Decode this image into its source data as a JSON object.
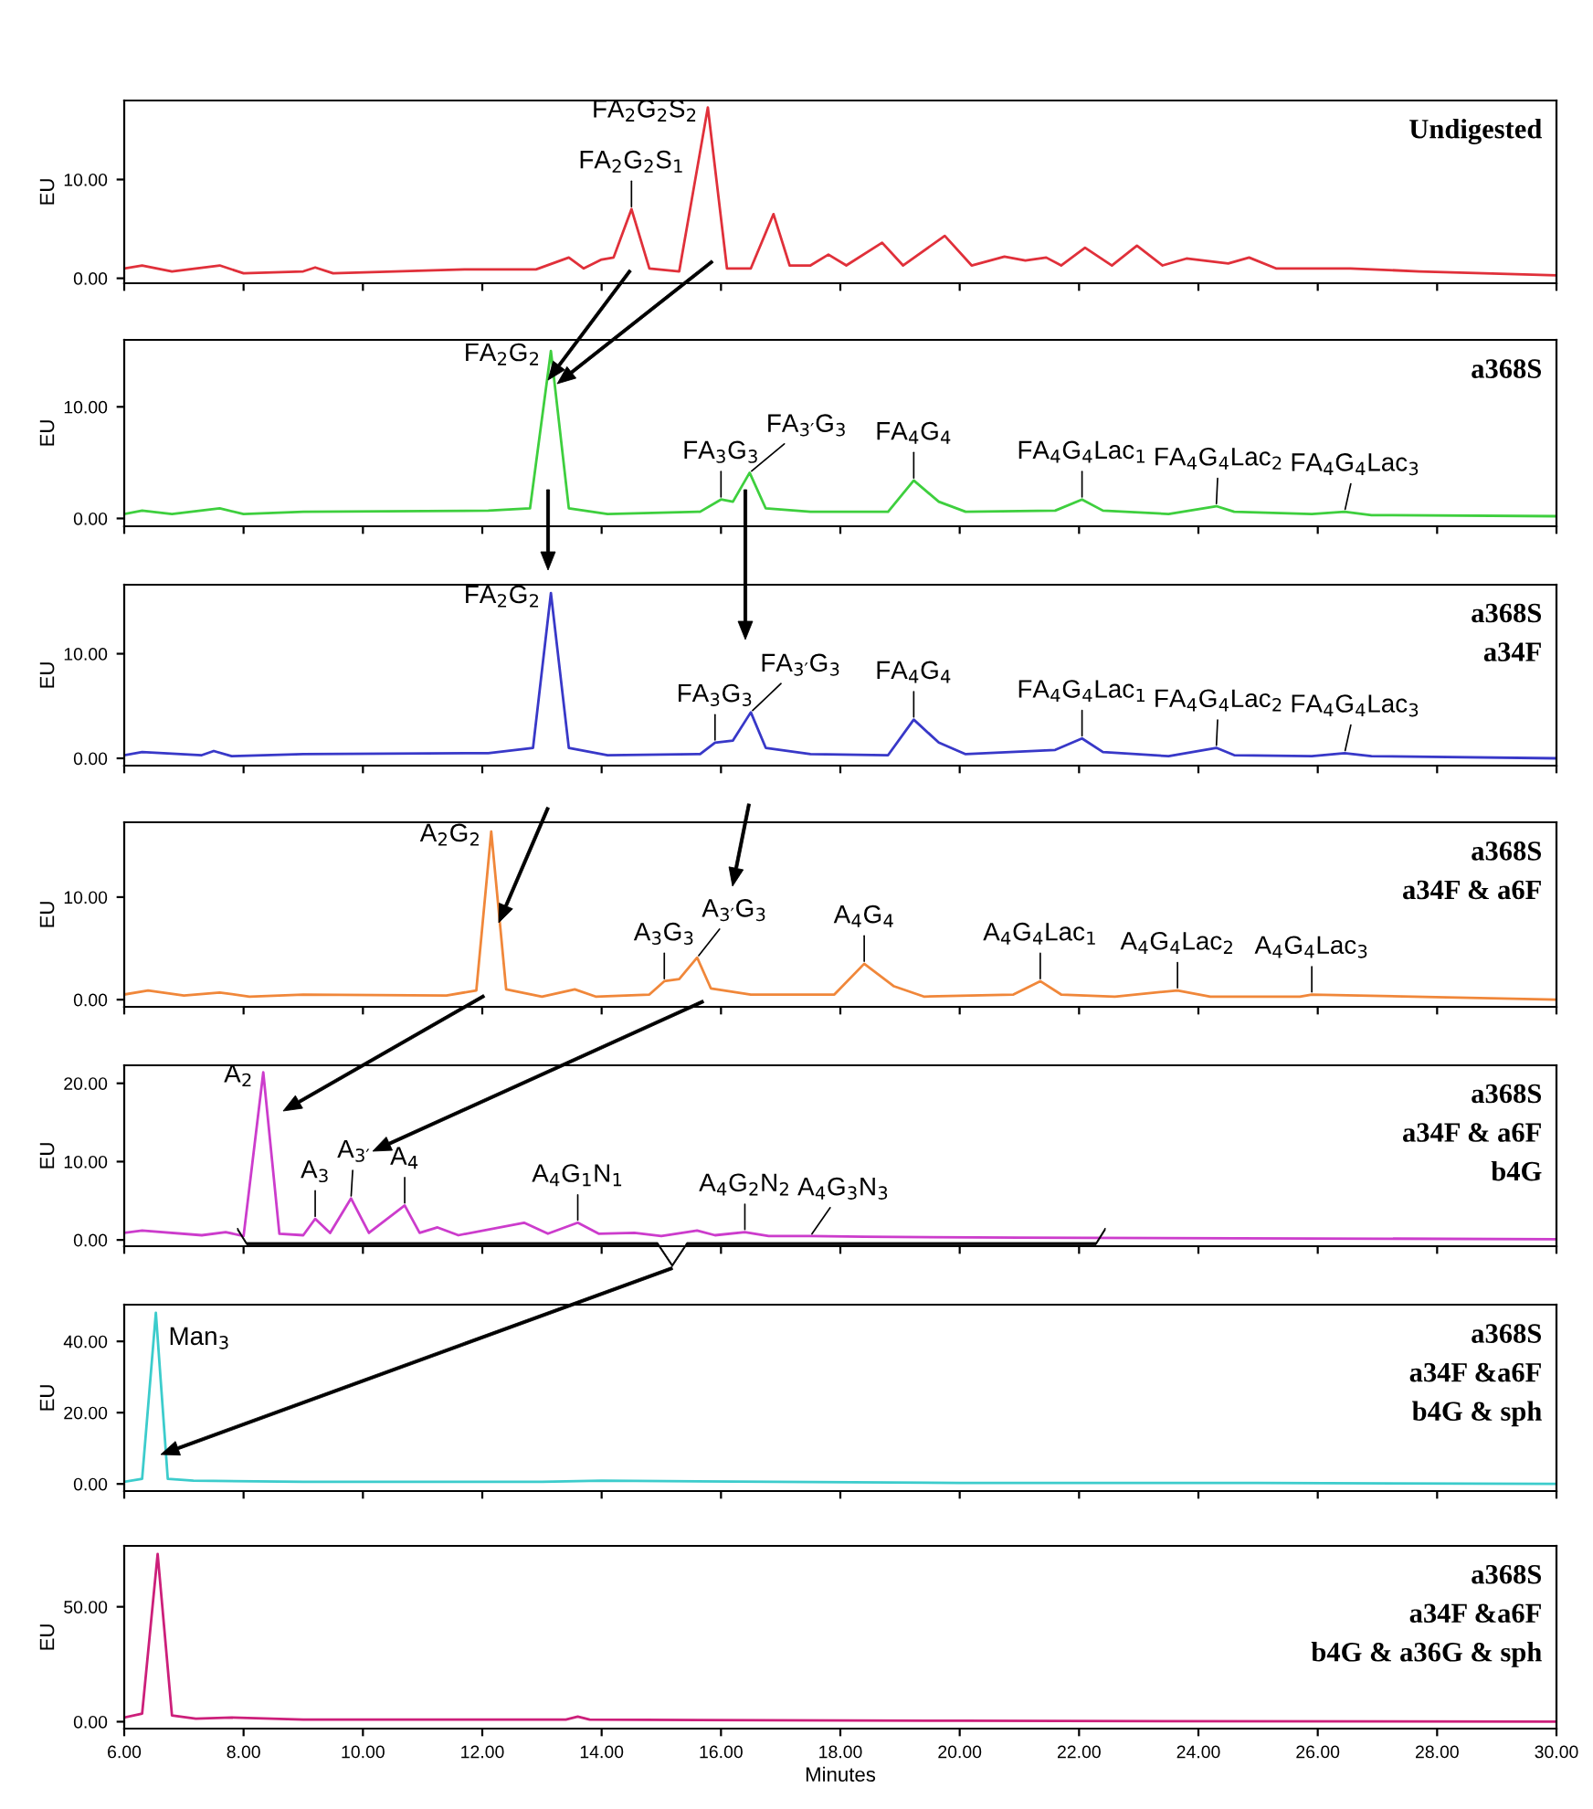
{
  "chart_data": [
    {
      "type": "line",
      "ylabel": "EU",
      "tick_labels": "y",
      "grid": false,
      "marker": "none",
      "line_style": "solid",
      "xlim": [
        6,
        30
      ],
      "ylim": [
        -0.5,
        18
      ],
      "xticks": [
        {
          "value": 6,
          "label": null
        },
        {
          "value": 8,
          "label": null
        },
        {
          "value": 10,
          "label": null
        },
        {
          "value": 12,
          "label": null
        },
        {
          "value": 14,
          "label": null
        },
        {
          "value": 16,
          "label": null
        },
        {
          "value": 18,
          "label": null
        },
        {
          "value": 20,
          "label": null
        },
        {
          "value": 22,
          "label": null
        },
        {
          "value": 24,
          "label": null
        },
        {
          "value": 26,
          "label": null
        },
        {
          "value": 28,
          "label": null
        },
        {
          "value": 30,
          "label": null
        }
      ],
      "yticks": [
        {
          "value": 0,
          "label": "0.00"
        },
        {
          "value": 10,
          "label": "10.00"
        }
      ],
      "x": [
        6.0,
        6.3,
        6.8,
        7.6,
        8.0,
        9.0,
        9.2,
        9.5,
        11.7,
        12.9,
        13.45,
        13.7,
        14.0,
        14.2,
        14.5,
        14.8,
        15.3,
        15.78,
        16.1,
        16.5,
        16.88,
        17.15,
        17.5,
        17.8,
        18.1,
        18.7,
        19.05,
        19.75,
        20.2,
        20.75,
        21.1,
        21.45,
        21.7,
        22.1,
        22.55,
        22.97,
        23.4,
        23.8,
        24.5,
        24.85,
        25.3,
        26.55,
        27.7,
        30.0
      ],
      "series": [
        {
          "color": "#e0303a",
          "values": [
            1.0,
            1.3,
            0.7,
            1.3,
            0.5,
            0.7,
            1.1,
            0.5,
            0.9,
            0.9,
            2.1,
            1.0,
            1.9,
            2.1,
            7.0,
            1.0,
            0.7,
            17.3,
            1.0,
            1.0,
            6.5,
            1.3,
            1.3,
            2.4,
            1.3,
            3.6,
            1.3,
            4.3,
            1.3,
            2.2,
            1.8,
            2.1,
            1.3,
            3.1,
            1.3,
            3.3,
            1.3,
            2.0,
            1.5,
            2.1,
            1.0,
            1.0,
            0.7,
            0.3
          ]
        }
      ],
      "annotations": [
        "Undigested",
        {
          "text": "FA$_{2}$G$_{2}$S$_{1}$",
          "x": 14.5,
          "y": 7.0
        },
        {
          "text": "FA$_{2}$G$_{2}$S$_{2}$",
          "x": 15.78,
          "y": 17.3
        }
      ]
    },
    {
      "type": "line",
      "ylabel": "EU",
      "tick_labels": "y",
      "grid": false,
      "marker": "none",
      "line_style": "solid",
      "xlim": [
        6,
        30
      ],
      "ylim": [
        -0.7,
        16
      ],
      "xticks": [
        {
          "value": 6,
          "label": null
        },
        {
          "value": 8,
          "label": null
        },
        {
          "value": 10,
          "label": null
        },
        {
          "value": 12,
          "label": null
        },
        {
          "value": 14,
          "label": null
        },
        {
          "value": 16,
          "label": null
        },
        {
          "value": 18,
          "label": null
        },
        {
          "value": 20,
          "label": null
        },
        {
          "value": 22,
          "label": null
        },
        {
          "value": 24,
          "label": null
        },
        {
          "value": 26,
          "label": null
        },
        {
          "value": 28,
          "label": null
        },
        {
          "value": 30,
          "label": null
        }
      ],
      "yticks": [
        {
          "value": 0,
          "label": "0.00"
        },
        {
          "value": 10,
          "label": "10.00"
        }
      ],
      "x": [
        6.0,
        6.3,
        6.8,
        7.6,
        8.0,
        9.0,
        12.1,
        12.8,
        13.15,
        13.45,
        14.1,
        15.65,
        16.0,
        16.2,
        16.48,
        16.75,
        17.5,
        18.8,
        19.23,
        19.65,
        20.1,
        21.6,
        22.05,
        22.4,
        23.5,
        24.3,
        24.6,
        25.9,
        26.45,
        26.9,
        30.0
      ],
      "series": [
        {
          "color": "#3ecf3e",
          "values": [
            0.4,
            0.7,
            0.4,
            0.9,
            0.4,
            0.6,
            0.7,
            0.9,
            15.0,
            0.9,
            0.4,
            0.6,
            1.7,
            1.5,
            4.1,
            0.9,
            0.6,
            0.6,
            3.4,
            1.5,
            0.6,
            0.7,
            1.7,
            0.7,
            0.4,
            1.1,
            0.6,
            0.4,
            0.6,
            0.3,
            0.2
          ]
        }
      ],
      "annotations": [
        "a368S",
        {
          "text": "FA$_{2}$G$_{2}$",
          "x": 13.15,
          "y": 15.0
        },
        {
          "text": "FA$_{3}$G$_{3}$",
          "x": 16.0,
          "y": 1.7
        },
        {
          "text": "FA$_{3′}$G$_{3}$",
          "x": 16.48,
          "y": 4.1
        },
        {
          "text": "FA$_{4}$G$_{4}$",
          "x": 19.23,
          "y": 3.4
        },
        {
          "text": "FA$_{4}$G$_{4}$Lac$_{1}$",
          "x": 22.05,
          "y": 1.7
        },
        {
          "text": "FA$_{4}$G$_{4}$Lac$_{2}$",
          "x": 24.3,
          "y": 1.1
        },
        {
          "text": "FA$_{4}$G$_{4}$Lac$_{3}$",
          "x": 26.45,
          "y": 0.6
        }
      ]
    },
    {
      "type": "line",
      "ylabel": "EU",
      "tick_labels": "y",
      "grid": false,
      "marker": "none",
      "line_style": "solid",
      "xlim": [
        6,
        30
      ],
      "ylim": [
        -0.7,
        16.6
      ],
      "xticks": [
        {
          "value": 6,
          "label": null
        },
        {
          "value": 8,
          "label": null
        },
        {
          "value": 10,
          "label": null
        },
        {
          "value": 12,
          "label": null
        },
        {
          "value": 14,
          "label": null
        },
        {
          "value": 16,
          "label": null
        },
        {
          "value": 18,
          "label": null
        },
        {
          "value": 20,
          "label": null
        },
        {
          "value": 22,
          "label": null
        },
        {
          "value": 24,
          "label": null
        },
        {
          "value": 26,
          "label": null
        },
        {
          "value": 28,
          "label": null
        },
        {
          "value": 30,
          "label": null
        }
      ],
      "yticks": [
        {
          "value": 0,
          "label": "0.00"
        },
        {
          "value": 10,
          "label": "10.00"
        }
      ],
      "x": [
        6.0,
        6.3,
        7.3,
        7.5,
        7.8,
        9.0,
        12.1,
        12.85,
        13.15,
        13.45,
        14.1,
        15.65,
        15.9,
        16.2,
        16.5,
        16.75,
        17.5,
        18.8,
        19.23,
        19.65,
        20.1,
        21.6,
        22.05,
        22.4,
        23.5,
        24.3,
        24.6,
        25.9,
        26.45,
        26.9,
        30.0
      ],
      "series": [
        {
          "color": "#3838c8",
          "values": [
            0.3,
            0.6,
            0.3,
            0.7,
            0.2,
            0.4,
            0.5,
            1.0,
            15.8,
            1.0,
            0.3,
            0.4,
            1.5,
            1.7,
            4.4,
            1.0,
            0.4,
            0.3,
            3.7,
            1.5,
            0.4,
            0.8,
            1.9,
            0.6,
            0.2,
            1.0,
            0.3,
            0.2,
            0.5,
            0.2,
            0.0
          ]
        }
      ],
      "annotations": [
        "a368S\na34F",
        {
          "text": "FA$_{2}$G$_{2}$",
          "x": 13.15,
          "y": 15.8
        },
        {
          "text": "FA$_{3}$G$_{3}$",
          "x": 15.9,
          "y": 1.5
        },
        {
          "text": "FA$_{3′}$G$_{3}$",
          "x": 16.5,
          "y": 4.4
        },
        {
          "text": "FA$_{4}$G$_{4}$",
          "x": 19.23,
          "y": 3.7
        },
        {
          "text": "FA$_{4}$G$_{4}$Lac$_{1}$",
          "x": 22.05,
          "y": 1.9
        },
        {
          "text": "FA$_{4}$G$_{4}$Lac$_{2}$",
          "x": 24.3,
          "y": 1.0
        },
        {
          "text": "FA$_{4}$G$_{4}$Lac$_{3}$",
          "x": 26.45,
          "y": 0.5
        }
      ]
    },
    {
      "type": "line",
      "ylabel": "EU",
      "tick_labels": "y",
      "grid": false,
      "marker": "none",
      "line_style": "solid",
      "xlim": [
        6,
        30
      ],
      "ylim": [
        -0.7,
        17.3
      ],
      "xticks": [
        {
          "value": 6,
          "label": null
        },
        {
          "value": 8,
          "label": null
        },
        {
          "value": 10,
          "label": null
        },
        {
          "value": 12,
          "label": null
        },
        {
          "value": 14,
          "label": null
        },
        {
          "value": 16,
          "label": null
        },
        {
          "value": 18,
          "label": null
        },
        {
          "value": 20,
          "label": null
        },
        {
          "value": 22,
          "label": null
        },
        {
          "value": 24,
          "label": null
        },
        {
          "value": 26,
          "label": null
        },
        {
          "value": 28,
          "label": null
        },
        {
          "value": 30,
          "label": null
        }
      ],
      "yticks": [
        {
          "value": 0,
          "label": "0.00"
        },
        {
          "value": 10,
          "label": "10.00"
        }
      ],
      "x": [
        6.0,
        6.4,
        7.0,
        7.6,
        8.1,
        9.0,
        11.4,
        11.9,
        12.15,
        12.4,
        13.0,
        13.55,
        13.9,
        14.8,
        15.05,
        15.3,
        15.6,
        15.83,
        16.5,
        17.9,
        18.4,
        18.9,
        19.4,
        20.9,
        21.35,
        21.7,
        22.6,
        23.65,
        24.2,
        25.7,
        25.9,
        30.0
      ],
      "series": [
        {
          "color": "#f0873a",
          "values": [
            0.5,
            0.9,
            0.4,
            0.7,
            0.3,
            0.5,
            0.4,
            0.9,
            16.4,
            1.0,
            0.3,
            1.0,
            0.3,
            0.5,
            1.8,
            2.0,
            4.1,
            1.1,
            0.5,
            0.5,
            3.5,
            1.3,
            0.3,
            0.5,
            1.8,
            0.5,
            0.3,
            0.9,
            0.3,
            0.3,
            0.5,
            0.0
          ]
        }
      ],
      "annotations": [
        "a368S\na34F & a6F",
        {
          "text": "A$_{2}$G$_{2}$",
          "x": 12.15,
          "y": 16.4
        },
        {
          "text": "A$_{3}$G$_{3}$",
          "x": 15.05,
          "y": 1.8
        },
        {
          "text": "A$_{3′}$G$_{3}$",
          "x": 15.6,
          "y": 4.1
        },
        {
          "text": "A$_{4}$G$_{4}$",
          "x": 18.4,
          "y": 3.5
        },
        {
          "text": "A$_{4}$G$_{4}$Lac$_{1}$",
          "x": 21.35,
          "y": 1.8
        },
        {
          "text": "A$_{4}$G$_{4}$Lac$_{2}$",
          "x": 23.65,
          "y": 0.9
        },
        {
          "text": "A$_{4}$G$_{4}$Lac$_{3}$",
          "x": 25.9,
          "y": 0.5
        }
      ]
    },
    {
      "type": "line",
      "ylabel": "EU",
      "tick_labels": "y",
      "grid": false,
      "marker": "none",
      "line_style": "solid",
      "xlim": [
        6,
        30
      ],
      "ylim": [
        -0.8,
        22.3
      ],
      "xticks": [
        {
          "value": 6,
          "label": null
        },
        {
          "value": 8,
          "label": null
        },
        {
          "value": 10,
          "label": null
        },
        {
          "value": 12,
          "label": null
        },
        {
          "value": 14,
          "label": null
        },
        {
          "value": 16,
          "label": null
        },
        {
          "value": 18,
          "label": null
        },
        {
          "value": 20,
          "label": null
        },
        {
          "value": 22,
          "label": null
        },
        {
          "value": 24,
          "label": null
        },
        {
          "value": 26,
          "label": null
        },
        {
          "value": 28,
          "label": null
        },
        {
          "value": 30,
          "label": null
        }
      ],
      "yticks": [
        {
          "value": 0,
          "label": "0.00"
        },
        {
          "value": 10,
          "label": "10.00"
        },
        {
          "value": 20,
          "label": "20.00"
        }
      ],
      "x": [
        6.0,
        6.3,
        7.3,
        7.7,
        8.0,
        8.33,
        8.6,
        9.0,
        9.2,
        9.45,
        9.8,
        10.1,
        10.7,
        10.95,
        11.25,
        11.6,
        12.7,
        13.1,
        13.6,
        13.95,
        14.55,
        15.0,
        15.6,
        15.9,
        16.4,
        16.8,
        17.5,
        18.4,
        21.0,
        30.0
      ],
      "series": [
        {
          "color": "#cc3ccc",
          "values": [
            0.9,
            1.2,
            0.6,
            1.0,
            0.5,
            21.4,
            0.8,
            0.6,
            2.7,
            0.9,
            5.3,
            0.9,
            4.4,
            0.9,
            1.6,
            0.6,
            2.2,
            0.8,
            2.2,
            0.8,
            0.9,
            0.5,
            1.2,
            0.6,
            1.0,
            0.5,
            0.5,
            0.4,
            0.3,
            0.1
          ]
        }
      ],
      "annotations": [
        "a368S\na34F & a6F\nb4G",
        {
          "text": "A$_{2}$",
          "x": 8.33,
          "y": 21.4
        },
        {
          "text": "A$_{3}$",
          "x": 9.2,
          "y": 2.7
        },
        {
          "text": "A$_{3′}$",
          "x": 9.8,
          "y": 5.3
        },
        {
          "text": "A$_{4}$",
          "x": 10.7,
          "y": 4.4
        },
        {
          "text": "A$_{4}$G$_{1}$N$_{1}$",
          "x": 13.6,
          "y": 2.2
        },
        {
          "text": "A$_{4}$G$_{2}$N$_{2}$",
          "x": 16.4,
          "y": 1.0
        },
        {
          "text": "A$_{4}$G$_{3}$N$_{3}$",
          "x": 17.5,
          "y": 0.5
        }
      ]
    },
    {
      "type": "line",
      "ylabel": "EU",
      "tick_labels": "y",
      "grid": false,
      "marker": "none",
      "line_style": "solid",
      "xlim": [
        6,
        30
      ],
      "ylim": [
        -2,
        50.3
      ],
      "xticks": [
        {
          "value": 6,
          "label": null
        },
        {
          "value": 8,
          "label": null
        },
        {
          "value": 10,
          "label": null
        },
        {
          "value": 12,
          "label": null
        },
        {
          "value": 14,
          "label": null
        },
        {
          "value": 16,
          "label": null
        },
        {
          "value": 18,
          "label": null
        },
        {
          "value": 20,
          "label": null
        },
        {
          "value": 22,
          "label": null
        },
        {
          "value": 24,
          "label": null
        },
        {
          "value": 26,
          "label": null
        },
        {
          "value": 28,
          "label": null
        },
        {
          "value": 30,
          "label": null
        }
      ],
      "yticks": [
        {
          "value": 0,
          "label": "0.00"
        },
        {
          "value": 20,
          "label": "20.00"
        },
        {
          "value": 40,
          "label": "40.00"
        }
      ],
      "x": [
        6.0,
        6.3,
        6.53,
        6.73,
        7.16,
        9.0,
        13.0,
        14.0,
        20.0,
        25.0,
        30.0
      ],
      "series": [
        {
          "color": "#3ccccc",
          "values": [
            0.6,
            1.4,
            48.0,
            1.4,
            0.9,
            0.6,
            0.6,
            0.9,
            0.3,
            0.3,
            0.0
          ]
        }
      ],
      "annotations": [
        "a368S\na34F &a6F\nb4G & sph",
        {
          "text": "Man$_{3}$",
          "x": 6.53,
          "y": 48.0
        }
      ]
    },
    {
      "type": "line",
      "ylabel": "EU",
      "xlabel": "Minutes",
      "grid": false,
      "marker": "none",
      "line_style": "solid",
      "xlim": [
        6,
        30
      ],
      "ylim": [
        -3,
        76.5
      ],
      "xticks": [
        {
          "value": 6,
          "label": "6.00"
        },
        {
          "value": 8,
          "label": "8.00"
        },
        {
          "value": 10,
          "label": "10.00"
        },
        {
          "value": 12,
          "label": "12.00"
        },
        {
          "value": 14,
          "label": "14.00"
        },
        {
          "value": 16,
          "label": "16.00"
        },
        {
          "value": 18,
          "label": "18.00"
        },
        {
          "value": 20,
          "label": "20.00"
        },
        {
          "value": 22,
          "label": "22.00"
        },
        {
          "value": 24,
          "label": "24.00"
        },
        {
          "value": 26,
          "label": "26.00"
        },
        {
          "value": 28,
          "label": "28.00"
        },
        {
          "value": 30,
          "label": "30.00"
        }
      ],
      "yticks": [
        {
          "value": 0,
          "label": "0.00"
        },
        {
          "value": 50,
          "label": "50.00"
        }
      ],
      "x": [
        6.0,
        6.3,
        6.56,
        6.8,
        7.2,
        7.8,
        9.0,
        13.4,
        13.6,
        13.8,
        20.0,
        30.0
      ],
      "series": [
        {
          "color": "#cc1f7a",
          "values": [
            1.8,
            3.5,
            73.0,
            2.7,
            1.3,
            1.8,
            0.9,
            0.9,
            2.2,
            0.9,
            0.4,
            0.0
          ]
        }
      ],
      "annotations": [
        "a368S\na34F &a6F\nb4G & a36G & sph"
      ]
    }
  ]
}
